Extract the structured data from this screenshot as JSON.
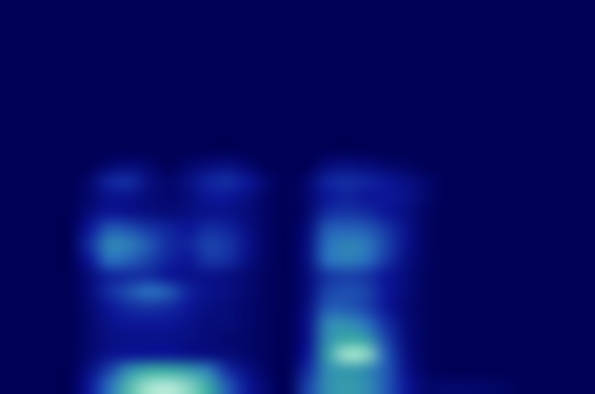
{
  "chart_data": {
    "type": "heatmap",
    "tick_labels": false,
    "grid": false,
    "zlim": [
      0,
      1
    ],
    "cells": [
      [
        0,
        0,
        0,
        0,
        0,
        0,
        0,
        0,
        0,
        0,
        0,
        0,
        0,
        0,
        0,
        0,
        0,
        0,
        0,
        0,
        0,
        0,
        0,
        0,
        0,
        0,
        0,
        0,
        0,
        0
      ],
      [
        0,
        0,
        0,
        0,
        0,
        0,
        0,
        0,
        0,
        0,
        0,
        0,
        0,
        0,
        0,
        0,
        0,
        0,
        0,
        0,
        0,
        0,
        0,
        0,
        0,
        0,
        0,
        0,
        0,
        0
      ],
      [
        0,
        0,
        0,
        0,
        0,
        0,
        0,
        0,
        0,
        0,
        0,
        0,
        0,
        0,
        0,
        0,
        0,
        0,
        0,
        0,
        0,
        0,
        0,
        0,
        0,
        0,
        0,
        0,
        0,
        0
      ],
      [
        0,
        0,
        0,
        0,
        0,
        0,
        0,
        0,
        0,
        0,
        0,
        0,
        0,
        0,
        0,
        0,
        0,
        0,
        0,
        0,
        0,
        0,
        0,
        0,
        0,
        0,
        0,
        0,
        0,
        0
      ],
      [
        0,
        0,
        0,
        0,
        0,
        0,
        0,
        0,
        0,
        0,
        0,
        0,
        0,
        0,
        0,
        0,
        0,
        0,
        0,
        0,
        0,
        0,
        0,
        0,
        0,
        0,
        0,
        0,
        0,
        0
      ],
      [
        0,
        0,
        0,
        0,
        0,
        0,
        0,
        0,
        0,
        0,
        0,
        0,
        0,
        0,
        0,
        0,
        0,
        0,
        0,
        0,
        0,
        0,
        0,
        0,
        0,
        0,
        0,
        0,
        0,
        0
      ],
      [
        0,
        0,
        0,
        0,
        0,
        0,
        0,
        0,
        0,
        0,
        0,
        0,
        0,
        0,
        0,
        0,
        0,
        0,
        0,
        0,
        0,
        0,
        0,
        0,
        0,
        0,
        0,
        0,
        0,
        0
      ],
      [
        0,
        0,
        0,
        0,
        0,
        0,
        0,
        0,
        0,
        0,
        0,
        0,
        0,
        0,
        0,
        0,
        0,
        0,
        0,
        0,
        0,
        0,
        0,
        0,
        0,
        0,
        0,
        0,
        0,
        0
      ],
      [
        0,
        0,
        0,
        0,
        0,
        0,
        0,
        0,
        0,
        0,
        0,
        0,
        0,
        0,
        0,
        0,
        0,
        0,
        0,
        0,
        0,
        0,
        0,
        0,
        0,
        0,
        0,
        0,
        0,
        0
      ],
      [
        0,
        0,
        0,
        0,
        0,
        0,
        0,
        0,
        0,
        0,
        0,
        0,
        0,
        0,
        0,
        0,
        0,
        0,
        0,
        0,
        0,
        0,
        0,
        0,
        0,
        0,
        0,
        0,
        0,
        0
      ],
      [
        0,
        0,
        0,
        0,
        0,
        0.05,
        0.08,
        0.05,
        0,
        0.05,
        0.08,
        0.1,
        0.05,
        0,
        0,
        0,
        0.08,
        0.1,
        0.08,
        0.05,
        0.03,
        0,
        0,
        0,
        0,
        0,
        0,
        0,
        0,
        0
      ],
      [
        0,
        0,
        0,
        0,
        0.05,
        0.18,
        0.2,
        0.1,
        0.05,
        0.1,
        0.18,
        0.2,
        0.15,
        0.05,
        0,
        0.05,
        0.18,
        0.2,
        0.18,
        0.15,
        0.1,
        0.05,
        0,
        0,
        0,
        0,
        0,
        0,
        0,
        0
      ],
      [
        0,
        0,
        0,
        0,
        0.05,
        0.12,
        0.12,
        0.08,
        0.05,
        0.08,
        0.15,
        0.15,
        0.1,
        0.03,
        0,
        0.05,
        0.15,
        0.18,
        0.15,
        0.15,
        0.12,
        0.05,
        0,
        0,
        0,
        0,
        0,
        0,
        0,
        0
      ],
      [
        0,
        0,
        0,
        0,
        0.08,
        0.15,
        0.12,
        0.1,
        0.08,
        0.1,
        0.12,
        0.12,
        0.08,
        0.03,
        0,
        0.05,
        0.2,
        0.22,
        0.2,
        0.15,
        0.1,
        0.03,
        0,
        0,
        0,
        0,
        0,
        0,
        0,
        0
      ],
      [
        0,
        0,
        0,
        0,
        0.15,
        0.3,
        0.28,
        0.22,
        0.18,
        0.15,
        0.2,
        0.18,
        0.1,
        0.03,
        0,
        0.08,
        0.3,
        0.32,
        0.3,
        0.22,
        0.12,
        0.03,
        0,
        0,
        0,
        0,
        0,
        0,
        0,
        0
      ],
      [
        0,
        0,
        0,
        0,
        0.2,
        0.42,
        0.4,
        0.3,
        0.2,
        0.18,
        0.25,
        0.22,
        0.12,
        0.03,
        0,
        0.1,
        0.35,
        0.42,
        0.38,
        0.25,
        0.12,
        0.03,
        0,
        0,
        0,
        0,
        0,
        0,
        0,
        0
      ],
      [
        0,
        0,
        0,
        0,
        0.15,
        0.35,
        0.32,
        0.25,
        0.18,
        0.15,
        0.22,
        0.2,
        0.1,
        0.03,
        0,
        0.1,
        0.35,
        0.4,
        0.35,
        0.22,
        0.1,
        0.03,
        0,
        0,
        0,
        0,
        0,
        0,
        0,
        0
      ],
      [
        0,
        0,
        0,
        0,
        0.08,
        0.18,
        0.2,
        0.2,
        0.15,
        0.12,
        0.12,
        0.1,
        0.06,
        0.02,
        0,
        0.08,
        0.22,
        0.25,
        0.22,
        0.15,
        0.08,
        0.02,
        0,
        0,
        0,
        0,
        0,
        0,
        0,
        0
      ],
      [
        0,
        0,
        0,
        0,
        0.08,
        0.2,
        0.28,
        0.35,
        0.3,
        0.18,
        0.12,
        0.1,
        0.06,
        0.02,
        0,
        0.08,
        0.25,
        0.28,
        0.25,
        0.15,
        0.08,
        0.02,
        0,
        0,
        0,
        0,
        0,
        0,
        0,
        0
      ],
      [
        0,
        0,
        0,
        0,
        0.06,
        0.15,
        0.2,
        0.22,
        0.2,
        0.15,
        0.1,
        0.08,
        0.05,
        0.02,
        0,
        0.1,
        0.3,
        0.3,
        0.25,
        0.15,
        0.06,
        0.02,
        0,
        0,
        0,
        0,
        0,
        0,
        0,
        0
      ],
      [
        0,
        0,
        0,
        0,
        0.05,
        0.12,
        0.15,
        0.15,
        0.15,
        0.12,
        0.08,
        0.08,
        0.05,
        0.02,
        0,
        0.12,
        0.42,
        0.45,
        0.35,
        0.2,
        0.08,
        0.02,
        0,
        0,
        0,
        0,
        0,
        0,
        0,
        0
      ],
      [
        0,
        0,
        0,
        0,
        0.05,
        0.1,
        0.12,
        0.12,
        0.12,
        0.1,
        0.08,
        0.06,
        0.04,
        0.02,
        0,
        0.12,
        0.45,
        0.55,
        0.5,
        0.25,
        0.08,
        0.02,
        0,
        0,
        0,
        0,
        0,
        0,
        0,
        0
      ],
      [
        0,
        0,
        0,
        0,
        0.06,
        0.12,
        0.15,
        0.15,
        0.15,
        0.12,
        0.1,
        0.08,
        0.05,
        0.02,
        0,
        0.15,
        0.5,
        0.75,
        0.7,
        0.3,
        0.1,
        0.02,
        0,
        0,
        0,
        0,
        0,
        0,
        0,
        0
      ],
      [
        0,
        0,
        0,
        0,
        0.1,
        0.25,
        0.45,
        0.55,
        0.55,
        0.5,
        0.4,
        0.2,
        0.1,
        0.03,
        0,
        0.2,
        0.45,
        0.5,
        0.45,
        0.3,
        0.12,
        0.03,
        0,
        0,
        0,
        0,
        0,
        0,
        0,
        0
      ],
      [
        0,
        0,
        0,
        0,
        0.15,
        0.35,
        0.6,
        0.75,
        0.8,
        0.7,
        0.55,
        0.3,
        0.15,
        0.05,
        0,
        0.25,
        0.45,
        0.5,
        0.45,
        0.3,
        0.15,
        0.05,
        0.05,
        0.05,
        0.04,
        0.03,
        0,
        0,
        0,
        0
      ]
    ]
  }
}
